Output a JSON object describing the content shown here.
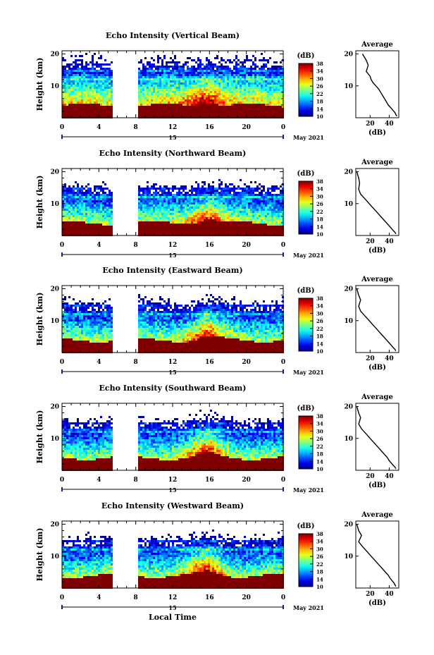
{
  "figure": {
    "x_axis_title": "Local Time",
    "x_sub_label": "15",
    "x_date_label": "May 2021"
  },
  "chart_data": [
    {
      "type": "heatmap",
      "title": "Echo Intensity (Vertical Beam)",
      "xlabel": "",
      "ylabel": "Height (km)",
      "xlim": [
        0,
        24
      ],
      "ylim": [
        0,
        21
      ],
      "xticks": [
        "0",
        "4",
        "8",
        "12",
        "16",
        "20",
        "0"
      ],
      "yticks": [
        "10",
        "20"
      ],
      "colorbar": {
        "label": "(dB)",
        "range": [
          10,
          38
        ],
        "ticks": [
          "10",
          "14",
          "18",
          "22",
          "26",
          "30",
          "34",
          "38"
        ]
      },
      "data_gap_hours": [
        5.6,
        8.2
      ],
      "average_profile": {
        "title": "Average",
        "xlabel": "(dB)",
        "xticks": [
          "20",
          "40"
        ],
        "yticks": [
          "10",
          "20"
        ],
        "x_db": [
          12,
          14,
          16,
          18,
          16,
          20,
          21,
          23,
          26,
          29,
          31,
          33,
          35,
          37,
          39,
          42,
          44,
          46,
          47,
          48
        ],
        "y_km": [
          20,
          19,
          18,
          16.5,
          14.5,
          13,
          12,
          11,
          10,
          9,
          8,
          7,
          6,
          5,
          4,
          3,
          2.3,
          1.6,
          1.0,
          0.5
        ]
      }
    },
    {
      "type": "heatmap",
      "title": "Echo Intensity (Northward Beam)",
      "xlabel": "",
      "ylabel": "Height (km)",
      "xlim": [
        0,
        24
      ],
      "ylim": [
        0,
        21
      ],
      "xticks": [
        "0",
        "4",
        "8",
        "12",
        "16",
        "20",
        "0"
      ],
      "yticks": [
        "10",
        "20"
      ],
      "colorbar": {
        "label": "(dB)",
        "range": [
          10,
          38
        ],
        "ticks": [
          "10",
          "14",
          "18",
          "22",
          "26",
          "30",
          "34",
          "38"
        ]
      },
      "data_gap_hours": [
        5.6,
        8.2
      ],
      "average_profile": {
        "title": "Average",
        "xlabel": "(dB)",
        "xticks": [
          "20",
          "40"
        ],
        "yticks": [
          "10",
          "20"
        ],
        "x_db": [
          6,
          7,
          8,
          9,
          8,
          10,
          13,
          16,
          19,
          22,
          25,
          28,
          31,
          34,
          37,
          40,
          42,
          44,
          46,
          47
        ],
        "y_km": [
          20,
          19,
          18,
          16.5,
          14.5,
          13,
          12,
          11,
          10,
          9,
          8,
          7,
          6,
          5,
          4,
          3,
          2.3,
          1.6,
          1.0,
          0.5
        ]
      }
    },
    {
      "type": "heatmap",
      "title": "Echo Intensity (Eastward Beam)",
      "xlabel": "",
      "ylabel": "Height (km)",
      "xlim": [
        0,
        24
      ],
      "ylim": [
        0,
        21
      ],
      "xticks": [
        "0",
        "4",
        "8",
        "12",
        "16",
        "20",
        "0"
      ],
      "yticks": [
        "10",
        "20"
      ],
      "colorbar": {
        "label": "(dB)",
        "range": [
          10,
          38
        ],
        "ticks": [
          "10",
          "14",
          "18",
          "22",
          "26",
          "30",
          "34",
          "38"
        ]
      },
      "data_gap_hours": [
        5.6,
        8.2
      ],
      "average_profile": {
        "title": "Average",
        "xlabel": "(dB)",
        "xticks": [
          "20",
          "40"
        ],
        "yticks": [
          "10",
          "20"
        ],
        "x_db": [
          6,
          7,
          8,
          10,
          8,
          10,
          13,
          16,
          19,
          22,
          25,
          28,
          31,
          34,
          37,
          40,
          42,
          44,
          46,
          47
        ],
        "y_km": [
          20,
          19,
          18,
          16.5,
          14.5,
          13,
          12,
          11,
          10,
          9,
          8,
          7,
          6,
          5,
          4,
          3,
          2.3,
          1.6,
          1.0,
          0.5
        ]
      }
    },
    {
      "type": "heatmap",
      "title": "Echo Intensity (Southward Beam)",
      "xlabel": "",
      "ylabel": "Height (km)",
      "xlim": [
        0,
        24
      ],
      "ylim": [
        0,
        21
      ],
      "xticks": [
        "0",
        "4",
        "8",
        "12",
        "16",
        "20",
        "0"
      ],
      "yticks": [
        "10",
        "20"
      ],
      "colorbar": {
        "label": "(dB)",
        "range": [
          10,
          38
        ],
        "ticks": [
          "10",
          "14",
          "18",
          "22",
          "26",
          "30",
          "34",
          "38"
        ]
      },
      "data_gap_hours": [
        5.6,
        8.2
      ],
      "average_profile": {
        "title": "Average",
        "xlabel": "(dB)",
        "xticks": [
          "20",
          "40"
        ],
        "yticks": [
          "10",
          "20"
        ],
        "x_db": [
          6,
          7,
          8,
          10,
          8,
          11,
          14,
          17,
          20,
          23,
          26,
          29,
          32,
          35,
          38,
          40,
          42,
          44,
          46,
          47
        ],
        "y_km": [
          20,
          19,
          18,
          16.5,
          14.5,
          13,
          12,
          11,
          10,
          9,
          8,
          7,
          6,
          5,
          4,
          3,
          2.3,
          1.6,
          1.0,
          0.5
        ]
      }
    },
    {
      "type": "heatmap",
      "title": "Echo Intensity (Westward Beam)",
      "xlabel": "",
      "ylabel": "Height (km)",
      "xlim": [
        0,
        24
      ],
      "ylim": [
        0,
        21
      ],
      "xticks": [
        "0",
        "4",
        "8",
        "12",
        "16",
        "20",
        "0"
      ],
      "yticks": [
        "10",
        "20"
      ],
      "colorbar": {
        "label": "(dB)",
        "range": [
          10,
          38
        ],
        "ticks": [
          "10",
          "14",
          "18",
          "22",
          "26",
          "30",
          "34",
          "38"
        ]
      },
      "data_gap_hours": [
        5.6,
        8.2
      ],
      "average_profile": {
        "title": "Average",
        "xlabel": "(dB)",
        "xticks": [
          "20",
          "40"
        ],
        "yticks": [
          "10",
          "20"
        ],
        "x_db": [
          6,
          7,
          8,
          11,
          8,
          12,
          15,
          18,
          21,
          24,
          27,
          30,
          33,
          36,
          39,
          41,
          43,
          45,
          46,
          47
        ],
        "y_km": [
          20,
          19,
          18,
          16.5,
          14.5,
          13,
          12,
          11,
          10,
          9,
          8,
          7,
          6,
          5,
          4,
          3,
          2.3,
          1.6,
          1.0,
          0.5
        ]
      }
    }
  ]
}
